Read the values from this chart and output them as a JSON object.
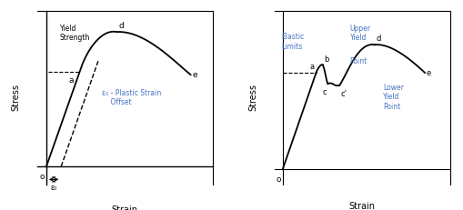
{
  "fig_width": 5.1,
  "fig_height": 2.31,
  "dpi": 100,
  "bg_color": "#ffffff",
  "line_color": "#000000",
  "text_color": "#000000",
  "annotation_color": "#4472c4",
  "left_panel": {
    "title": "",
    "ylabel": "Stress",
    "xlabel": "Strain",
    "origin_label": "o",
    "curve_label_d": "d",
    "curve_label_e": "e",
    "curve_label_a": "a",
    "yield_strength_label": "Yield\nStrength",
    "plastic_strain_label": "ε₀ - Plastic Strain\n    Offset",
    "epsilon_label": "ε₀"
  },
  "right_panel": {
    "title": "",
    "ylabel": "Stress",
    "xlabel": "Strain",
    "origin_label": "o",
    "label_a": "a",
    "label_b": "b",
    "label_c": "c",
    "label_cprime": "cʹ",
    "label_d": "d",
    "label_e": "e",
    "elastic_limits_label": "Elastic\nLimits",
    "upper_yield_label": "Upper\nYield",
    "point_label": "Point",
    "lower_yield_label": "Lower\nYield\nPoint"
  }
}
